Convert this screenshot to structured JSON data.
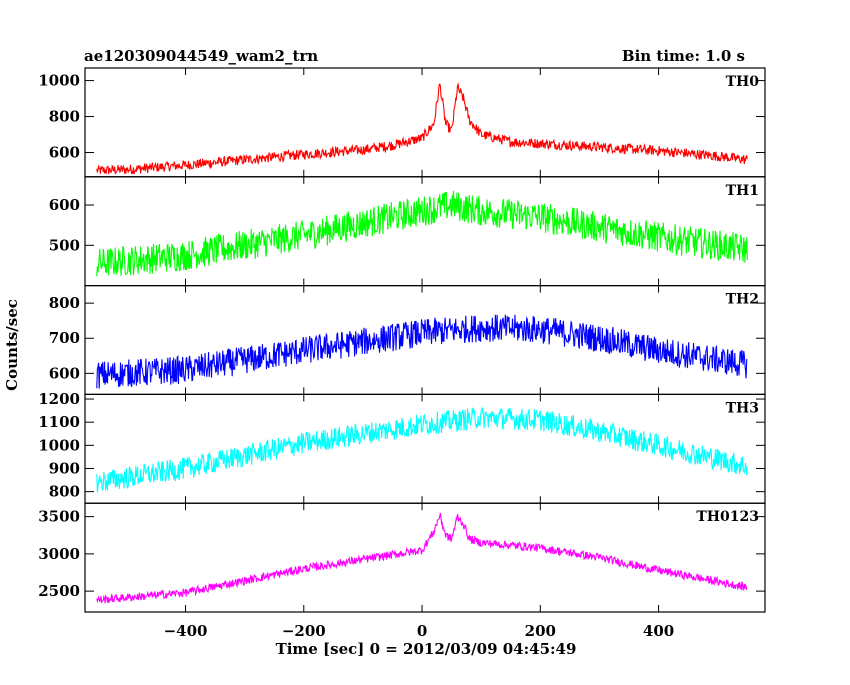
{
  "header": {
    "file_title": "ae120309044549_wam2_trn",
    "bin_time": "Bin time: 1.0 s"
  },
  "chart_data": {
    "type": "line",
    "title": "ae120309044549_wam2_trn",
    "subtitle": "Bin time: 1.0 s",
    "xlabel": "Time [sec] 0 = 2012/03/09 04:45:49",
    "ylabel": "Counts/sec",
    "xlim": [
      -570,
      580
    ],
    "xticks": [
      -400,
      -200,
      0,
      200,
      400
    ],
    "xtick_labels": [
      "−400",
      "−200",
      "0",
      "200",
      "400"
    ],
    "panels": [
      {
        "name": "TH0",
        "color": "#ff0000",
        "ylim": [
          465,
          1070
        ],
        "yticks": [
          600,
          800,
          1000
        ],
        "x": [
          -550,
          -500,
          -400,
          -300,
          -200,
          -100,
          -50,
          0,
          20,
          30,
          40,
          50,
          60,
          70,
          80,
          100,
          150,
          200,
          300,
          400,
          500,
          550
        ],
        "y": [
          500,
          505,
          530,
          560,
          590,
          615,
          640,
          680,
          760,
          980,
          760,
          720,
          960,
          900,
          780,
          700,
          660,
          650,
          630,
          610,
          580,
          560
        ],
        "noise": 28
      },
      {
        "name": "TH1",
        "color": "#00ff00",
        "ylim": [
          400,
          670
        ],
        "yticks": [
          500,
          600
        ],
        "x": [
          -550,
          -400,
          -200,
          0,
          50,
          100,
          200,
          300,
          400,
          550
        ],
        "y": [
          455,
          475,
          525,
          585,
          600,
          585,
          570,
          545,
          520,
          490
        ],
        "noise": 38
      },
      {
        "name": "TH2",
        "color": "#0000ff",
        "ylim": [
          540,
          850
        ],
        "yticks": [
          600,
          700,
          800
        ],
        "x": [
          -550,
          -400,
          -200,
          0,
          100,
          200,
          300,
          400,
          550
        ],
        "y": [
          595,
          610,
          665,
          715,
          730,
          725,
          700,
          665,
          625
        ],
        "noise": 40
      },
      {
        "name": "TH3",
        "color": "#00ffff",
        "ylim": [
          750,
          1220
        ],
        "yticks": [
          800,
          900,
          1000,
          1100,
          1200
        ],
        "x": [
          -550,
          -400,
          -200,
          0,
          100,
          200,
          300,
          400,
          550
        ],
        "y": [
          840,
          900,
          1010,
          1090,
          1120,
          1110,
          1060,
          1000,
          910
        ],
        "noise": 48
      },
      {
        "name": "TH0123",
        "color": "#ff00ff",
        "ylim": [
          2220,
          3680
        ],
        "yticks": [
          2500,
          3000,
          3500
        ],
        "x": [
          -550,
          -400,
          -200,
          0,
          20,
          30,
          40,
          50,
          60,
          70,
          80,
          100,
          200,
          300,
          400,
          550
        ],
        "y": [
          2380,
          2480,
          2800,
          3050,
          3300,
          3520,
          3250,
          3200,
          3500,
          3400,
          3200,
          3150,
          3080,
          2950,
          2780,
          2550
        ],
        "noise": 55
      }
    ]
  }
}
